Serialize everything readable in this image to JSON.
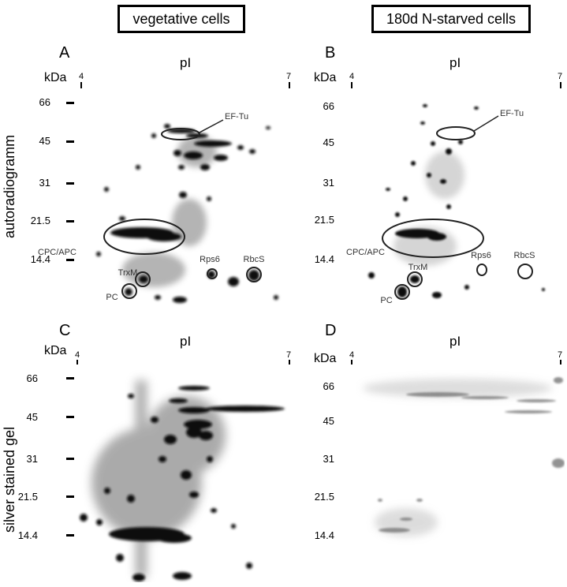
{
  "headers": {
    "left": "vegetative cells",
    "right": "180d N-starved cells"
  },
  "row_labels": {
    "top": "autoradiogramm",
    "bottom": "silver stained gel"
  },
  "panels": {
    "A": {
      "letter": "A",
      "pI": "pI",
      "kda": "kDa",
      "ph_min": "4",
      "ph_max": "7"
    },
    "B": {
      "letter": "B",
      "pI": "pI",
      "kda": "kDa",
      "ph_min": "4",
      "ph_max": "7"
    },
    "C": {
      "letter": "C",
      "pI": "pI",
      "kda": "kDa",
      "ph_min": "4",
      "ph_max": "7"
    },
    "D": {
      "letter": "D",
      "pI": "pI",
      "kda": "kDa",
      "ph_min": "4",
      "ph_max": "7"
    }
  },
  "mw_markers": [
    "66",
    "45",
    "31",
    "21.5",
    "14.4"
  ],
  "annotations": {
    "ef_tu": "EF-Tu",
    "cpc_apc": "CPC/APC",
    "trxm": "TrxM",
    "pc": "PC",
    "rps6": "Rps6",
    "rbcs": "RbcS"
  },
  "colors": {
    "spot": "#111111",
    "smear": "#555555",
    "outline": "#222222",
    "faint": "#9a9a9a"
  }
}
